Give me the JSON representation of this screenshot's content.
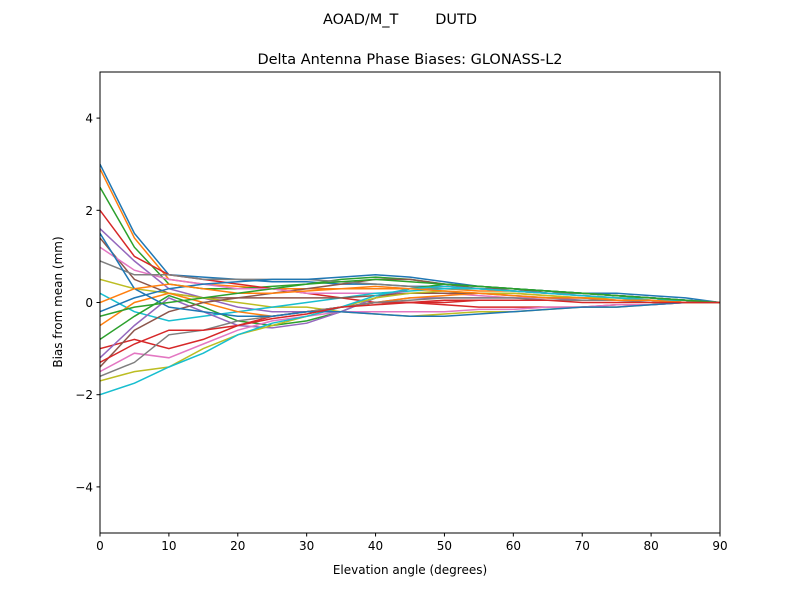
{
  "chart_data": {
    "type": "line",
    "suptitle": "AOAD/M_T        DUTD",
    "title": "Delta Antenna Phase Biases: GLONASS-L2",
    "xlabel": "Elevation angle (degrees)",
    "ylabel": "Bias from mean (mm)",
    "xlim": [
      0,
      90
    ],
    "ylim": [
      -5,
      5
    ],
    "xticks": [
      0,
      10,
      20,
      30,
      40,
      50,
      60,
      70,
      80,
      90
    ],
    "yticks": [
      -4,
      -2,
      0,
      2,
      4
    ],
    "ytick_labels": [
      "−4",
      "−2",
      "0",
      "2",
      "4"
    ],
    "grid": false,
    "x": [
      0,
      5,
      10,
      15,
      20,
      25,
      30,
      35,
      40,
      45,
      50,
      55,
      60,
      65,
      70,
      75,
      80,
      85,
      90
    ],
    "colors": [
      "#1f77b4",
      "#ff7f0e",
      "#2ca02c",
      "#d62728",
      "#9467bd",
      "#8c564b",
      "#e377c2",
      "#7f7f7f",
      "#bcbd22",
      "#17becf"
    ],
    "series": [
      {
        "values": [
          3.0,
          1.5,
          0.6,
          0.55,
          0.5,
          0.45,
          0.45,
          0.4,
          0.4,
          0.35,
          0.35,
          0.3,
          0.3,
          0.25,
          0.2,
          0.2,
          0.15,
          0.1,
          0
        ]
      },
      {
        "values": [
          2.9,
          1.4,
          0.5,
          0.4,
          0.35,
          0.3,
          0.3,
          0.3,
          0.3,
          0.3,
          0.3,
          0.25,
          0.25,
          0.2,
          0.2,
          0.15,
          0.1,
          0.05,
          0
        ]
      },
      {
        "values": [
          2.5,
          1.2,
          0.4,
          0.3,
          0.3,
          0.35,
          0.4,
          0.5,
          0.55,
          0.5,
          0.4,
          0.35,
          0.3,
          0.25,
          0.2,
          0.15,
          0.1,
          0.05,
          0
        ]
      },
      {
        "values": [
          2.0,
          1.0,
          0.6,
          0.5,
          0.4,
          0.3,
          0.2,
          0.1,
          0.0,
          0.0,
          0.0,
          0.05,
          0.05,
          0.05,
          0.05,
          0.05,
          0.05,
          0.0,
          0
        ]
      },
      {
        "values": [
          1.6,
          0.9,
          0.3,
          0.1,
          -0.1,
          -0.2,
          -0.2,
          -0.1,
          0.0,
          0.1,
          0.1,
          0.1,
          0.1,
          0.1,
          0.05,
          0.05,
          0.05,
          0,
          0
        ]
      },
      {
        "values": [
          1.4,
          0.5,
          0.2,
          0.1,
          0.1,
          0.2,
          0.3,
          0.4,
          0.5,
          0.5,
          0.4,
          0.3,
          0.3,
          0.2,
          0.2,
          0.15,
          0.1,
          0.05,
          0
        ]
      },
      {
        "values": [
          1.2,
          0.7,
          0.5,
          0.4,
          0.3,
          0.3,
          0.2,
          0.2,
          0.2,
          0.2,
          0.2,
          0.15,
          0.1,
          0.1,
          0.1,
          0.05,
          0.05,
          0,
          0
        ]
      },
      {
        "values": [
          0.9,
          0.6,
          0.6,
          0.5,
          0.5,
          0.5,
          0.5,
          0.45,
          0.4,
          0.35,
          0.3,
          0.3,
          0.25,
          0.2,
          0.2,
          0.15,
          0.1,
          0.05,
          0
        ]
      },
      {
        "values": [
          0.5,
          0.3,
          0.2,
          0.1,
          0.0,
          -0.1,
          -0.1,
          -0.2,
          -0.25,
          -0.3,
          -0.25,
          -0.2,
          -0.2,
          -0.15,
          -0.1,
          -0.1,
          -0.05,
          0,
          0
        ]
      },
      {
        "values": [
          0.2,
          -0.2,
          -0.4,
          -0.3,
          -0.2,
          -0.1,
          0.0,
          0.1,
          0.2,
          0.25,
          0.3,
          0.3,
          0.25,
          0.2,
          0.15,
          0.1,
          0.1,
          0.05,
          0
        ]
      },
      {
        "values": [
          -0.2,
          0.1,
          0.3,
          0.4,
          0.45,
          0.5,
          0.5,
          0.55,
          0.6,
          0.55,
          0.45,
          0.35,
          0.3,
          0.25,
          0.2,
          0.15,
          0.1,
          0.05,
          0
        ]
      },
      {
        "values": [
          -0.5,
          0.0,
          0.2,
          0.0,
          -0.2,
          -0.3,
          -0.2,
          -0.1,
          0.0,
          0.1,
          0.15,
          0.2,
          0.2,
          0.15,
          0.1,
          0.1,
          0.05,
          0,
          0
        ]
      },
      {
        "values": [
          -0.8,
          -0.3,
          0.15,
          -0.1,
          -0.4,
          -0.5,
          -0.4,
          -0.2,
          0.1,
          0.3,
          0.4,
          0.35,
          0.3,
          0.25,
          0.2,
          0.15,
          0.1,
          0.05,
          0
        ]
      },
      {
        "values": [
          -1.0,
          -0.8,
          -1.0,
          -0.8,
          -0.5,
          -0.3,
          -0.2,
          -0.1,
          0.0,
          0.0,
          -0.05,
          -0.1,
          -0.1,
          -0.1,
          -0.1,
          -0.05,
          -0.05,
          0,
          0
        ]
      },
      {
        "values": [
          -1.2,
          -0.5,
          0.1,
          -0.2,
          -0.5,
          -0.55,
          -0.45,
          -0.2,
          0.1,
          0.3,
          0.35,
          0.3,
          0.25,
          0.2,
          0.15,
          0.1,
          0.05,
          0.05,
          0
        ]
      },
      {
        "values": [
          -1.4,
          -0.6,
          -0.2,
          0.0,
          0.1,
          0.1,
          0.1,
          0.1,
          0.15,
          0.2,
          0.2,
          0.2,
          0.15,
          0.1,
          0.1,
          0.05,
          0.05,
          0,
          0
        ]
      },
      {
        "values": [
          -1.5,
          -1.1,
          -1.2,
          -0.9,
          -0.6,
          -0.4,
          -0.3,
          -0.2,
          -0.2,
          -0.2,
          -0.2,
          -0.15,
          -0.15,
          -0.1,
          -0.1,
          -0.05,
          -0.05,
          0,
          0
        ]
      },
      {
        "values": [
          -1.6,
          -1.3,
          -0.7,
          -0.6,
          -0.4,
          -0.3,
          -0.2,
          -0.1,
          0.0,
          0.05,
          0.1,
          0.1,
          0.1,
          0.05,
          0.05,
          0.05,
          0,
          0,
          0
        ]
      },
      {
        "values": [
          -1.7,
          -1.5,
          -1.4,
          -1.0,
          -0.7,
          -0.5,
          -0.3,
          -0.1,
          0.1,
          0.2,
          0.25,
          0.2,
          0.2,
          0.15,
          0.1,
          0.1,
          0.05,
          0,
          0
        ]
      },
      {
        "values": [
          -2.0,
          -1.75,
          -1.4,
          -1.1,
          -0.7,
          -0.45,
          -0.3,
          -0.1,
          0.15,
          0.3,
          0.35,
          0.3,
          0.25,
          0.2,
          0.15,
          0.1,
          0.05,
          0.05,
          0
        ]
      },
      {
        "values": [
          1.5,
          0.3,
          -0.1,
          -0.2,
          -0.3,
          -0.3,
          -0.2,
          -0.2,
          -0.25,
          -0.3,
          -0.3,
          -0.25,
          -0.2,
          -0.15,
          -0.1,
          -0.1,
          -0.05,
          0,
          0
        ]
      },
      {
        "values": [
          0.0,
          0.3,
          0.4,
          0.3,
          0.2,
          0.2,
          0.25,
          0.3,
          0.35,
          0.3,
          0.25,
          0.2,
          0.15,
          0.1,
          0.1,
          0.05,
          0.05,
          0,
          0
        ]
      },
      {
        "values": [
          -0.3,
          -0.1,
          0.0,
          0.1,
          0.2,
          0.3,
          0.4,
          0.45,
          0.5,
          0.45,
          0.4,
          0.35,
          0.3,
          0.25,
          0.2,
          0.15,
          0.1,
          0.05,
          0
        ]
      },
      {
        "values": [
          -1.3,
          -0.9,
          -0.6,
          -0.6,
          -0.5,
          -0.35,
          -0.25,
          -0.1,
          -0.05,
          0.0,
          0.05,
          0.05,
          0.05,
          0.05,
          0,
          0,
          0,
          0,
          0
        ]
      }
    ]
  }
}
